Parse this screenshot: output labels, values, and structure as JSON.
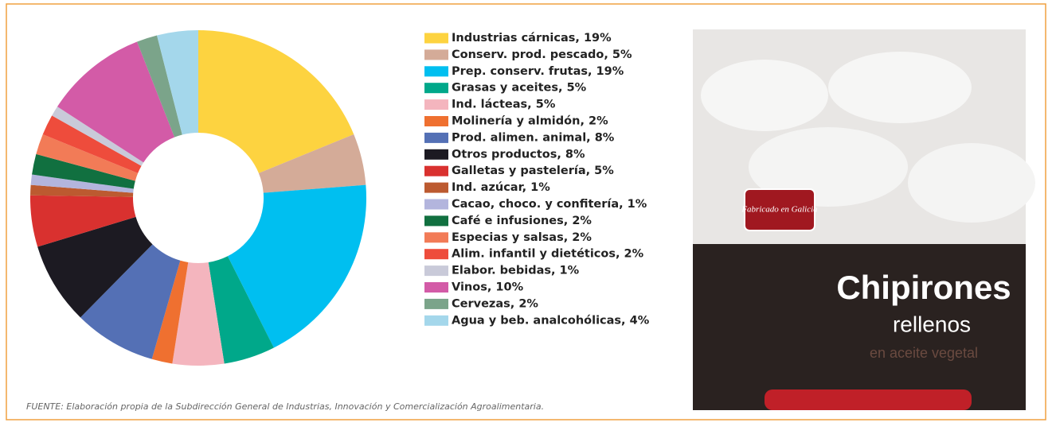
{
  "chart_data": {
    "type": "pie",
    "categories": [
      "Industrias cárnicas, 19%",
      "Conserv. prod. pescado, 5%",
      "Prep. conserv. frutas, 19%",
      "Grasas y aceites, 5%",
      "Ind. lácteas, 5%",
      "Molinería y almidón, 2%",
      "Prod. alimen. animal, 8%",
      "Otros productos, 8%",
      "Galletas y pastelería, 5%",
      "Ind. azúcar, 1%",
      "Cacao, choco. y confitería, 1%",
      "Café e infusiones, 2%",
      "Especias y salsas, 2%",
      "Alim. infantil y dietéticos, 2%",
      "Elabor. bebidas, 1%",
      "Vinos, 10%",
      "Cervezas, 2%",
      "Agua y beb. analcohólicas, 4%"
    ],
    "values": [
      19,
      5,
      19,
      5,
      5,
      2,
      8,
      8,
      5,
      1,
      1,
      2,
      2,
      2,
      1,
      10,
      2,
      4
    ],
    "colors": [
      "#fdd340",
      "#d4ab98",
      "#00bff0",
      "#00a88a",
      "#f4b5be",
      "#ef7030",
      "#5470b5",
      "#1c1a22",
      "#d9312f",
      "#bc5a30",
      "#b3b5dd",
      "#117040",
      "#f27b57",
      "#ee4c3c",
      "#c9cad9",
      "#d35ba7",
      "#7ba48a",
      "#a4d7eb"
    ],
    "donut": true,
    "source": "FUENTE: Elaboración propia de la Subdirección General de Industrias, Innovación y Comercialización Agroalimentaria."
  },
  "photo": {
    "texts": [
      "Fabricado en Galicia",
      "Chipirones",
      "rellenos",
      "en aceite vegetal"
    ]
  }
}
